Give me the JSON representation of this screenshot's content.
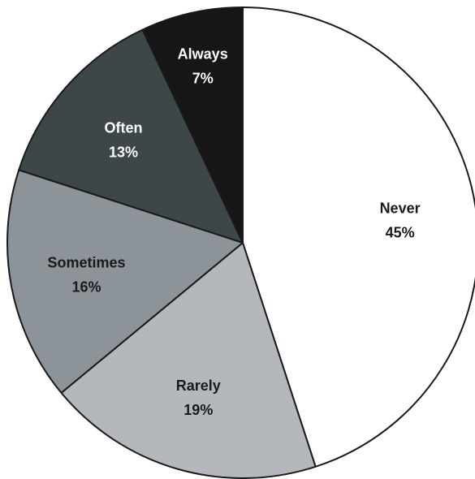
{
  "chart_data": {
    "type": "pie",
    "title": "",
    "start_angle_deg": 0,
    "direction": "clockwise",
    "slices": [
      {
        "label": "Never",
        "value": 45,
        "value_label": "45%",
        "color": "#ffffff",
        "text_color": "#1a1a1a"
      },
      {
        "label": "Rarely",
        "value": 19,
        "value_label": "19%",
        "color": "#b4b8bc",
        "text_color": "#1a1a1a"
      },
      {
        "label": "Sometimes",
        "value": 16,
        "value_label": "16%",
        "color": "#8c9499",
        "text_color": "#1a1a1a"
      },
      {
        "label": "Often",
        "value": 13,
        "value_label": "13%",
        "color": "#3d4649",
        "text_color": "#ffffff"
      },
      {
        "label": "Always",
        "value": 7,
        "value_label": "7%",
        "color": "#161616",
        "text_color": "#ffffff"
      }
    ],
    "slice_border_color": "#1a1a1a"
  }
}
